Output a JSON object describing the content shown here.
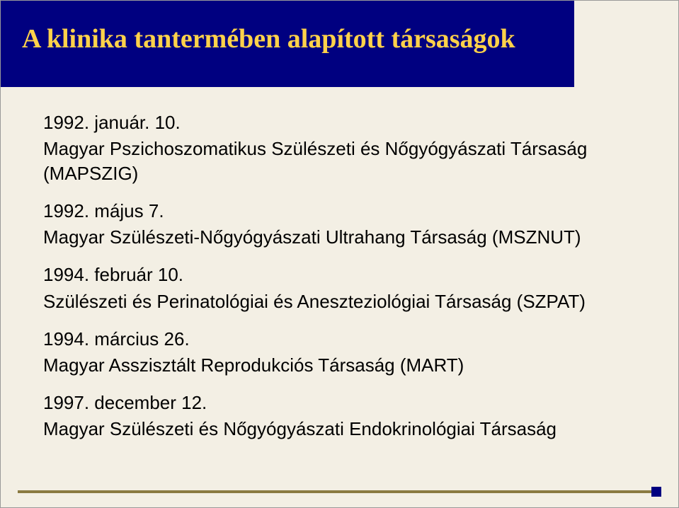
{
  "slide": {
    "title": "A klinika tantermében alapított társaságok",
    "title_bg": "#000080",
    "title_color": "#ffd24a",
    "background_color": "#f3efe4",
    "accent_bar_color": "#8a7a41",
    "corner_square_color": "#000080",
    "entries": [
      {
        "date": "1992. január. 10.",
        "org": "Magyar Pszichoszomatikus Szülészeti és Nőgyógyászati Társaság (MAPSZIG)"
      },
      {
        "date": "1992. május 7.",
        "org": "Magyar Szülészeti-Nőgyógyászati Ultrahang Társaság (MSZNUT)"
      },
      {
        "date": "1994. február 10.",
        "org": "Szülészeti és Perinatológiai és Aneszteziológiai Társaság (SZPAT)"
      },
      {
        "date": "1994. március 26.",
        "org": "Magyar Asszisztált Reprodukciós Társaság (MART)"
      },
      {
        "date": "1997. december 12.",
        "org": "Magyar Szülészeti és Nőgyógyászati Endokrinológiai Társaság"
      }
    ],
    "content_fontsize": 26,
    "title_fontsize": 38
  }
}
